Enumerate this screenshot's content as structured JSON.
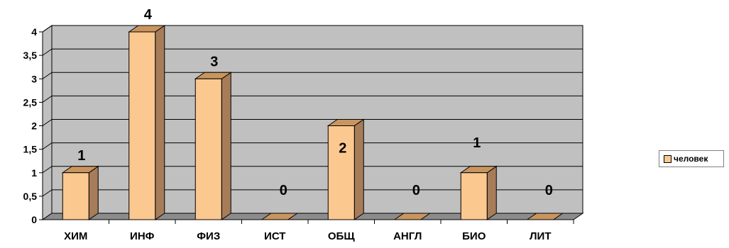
{
  "chart_data": {
    "type": "bar",
    "categories": [
      "ХИМ",
      "ИНФ",
      "ФИЗ",
      "ИСТ",
      "ОБЩ",
      "АНГЛ",
      "БИО",
      "ЛИТ"
    ],
    "series": [
      {
        "name": "человек",
        "values": [
          1,
          4,
          3,
          0,
          2,
          0,
          1,
          0
        ],
        "color": "#fbc890"
      }
    ],
    "y_ticks": [
      "0",
      "0,5",
      "1",
      "1,5",
      "2",
      "2,5",
      "3",
      "3,5",
      "4"
    ],
    "data_labels": [
      "1",
      "4",
      "3",
      "0",
      "2",
      "0",
      "1",
      "0"
    ],
    "ylim": [
      0,
      4
    ],
    "three_d": true,
    "grid": true,
    "legend_position": "right",
    "colors": {
      "bar_front": "#fbc890",
      "bar_side": "#a67c59",
      "bar_top": "#c9955f",
      "wall": "#c0c0c0",
      "floor": "#8c8c8c"
    }
  },
  "legend": {
    "label": "человек"
  }
}
